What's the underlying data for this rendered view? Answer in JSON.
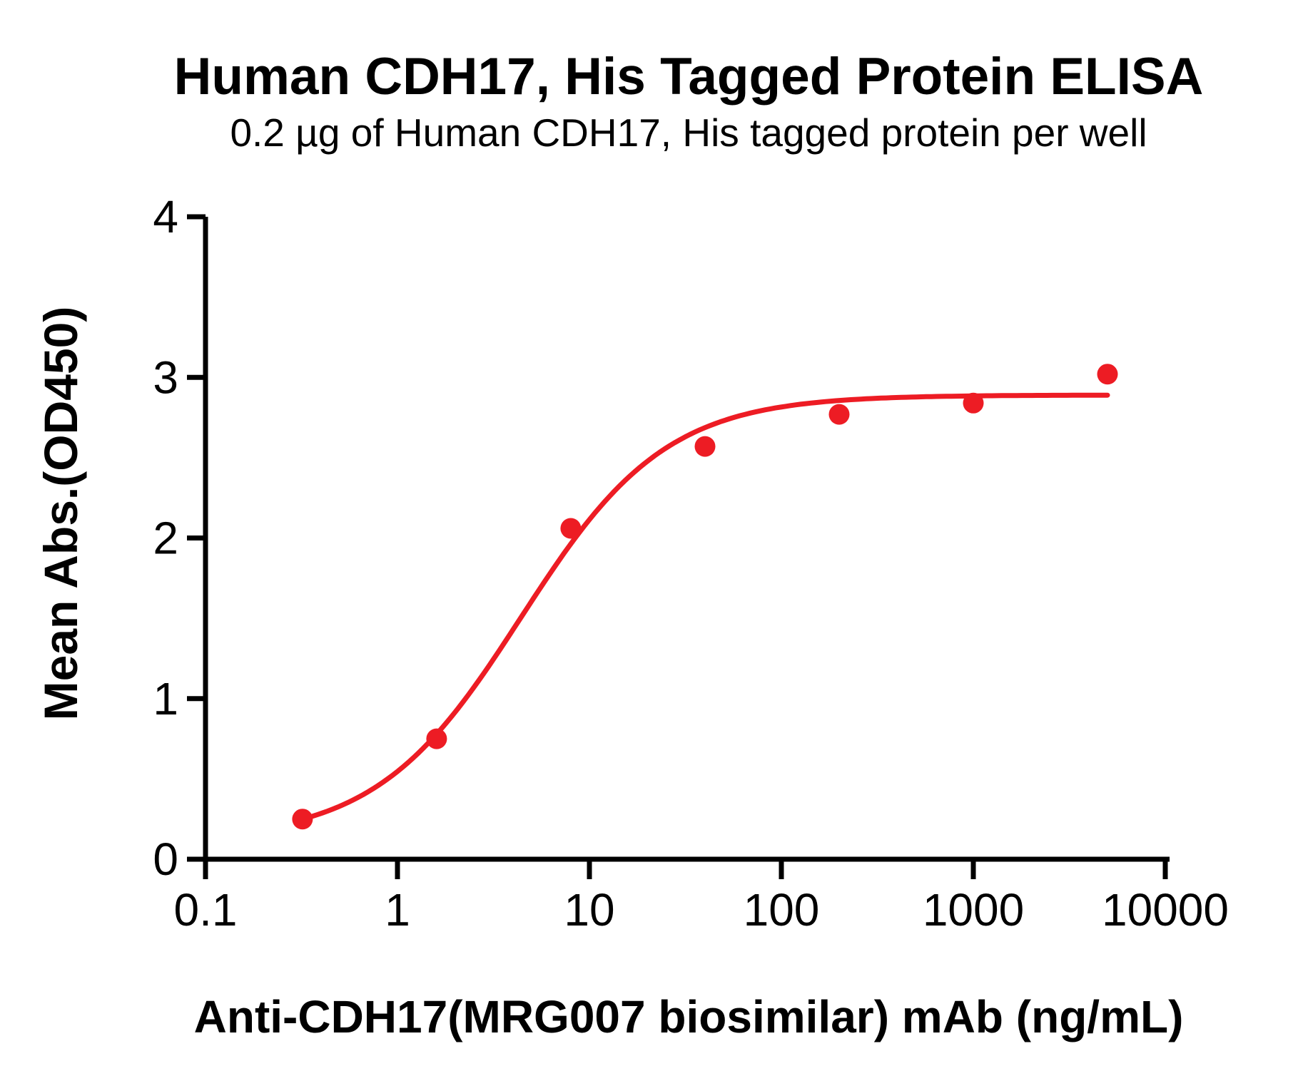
{
  "chart_data": {
    "type": "scatter",
    "title": "Human CDH17, His Tagged Protein ELISA",
    "subtitle": "0.2 µg of Human CDH17, His tagged protein per well",
    "xlabel": "Anti-CDH17(MRG007 biosimilar) mAb (ng/mL)",
    "ylabel": "Mean Abs.(OD450)",
    "x_scale": "log",
    "y_scale": "linear",
    "xlim": [
      0.1,
      10000
    ],
    "ylim": [
      0,
      4
    ],
    "x_tick_values": [
      0.1,
      1,
      10,
      100,
      1000,
      10000
    ],
    "x_tick_labels": [
      "0.1",
      "1",
      "10",
      "100",
      "1000",
      "10000"
    ],
    "y_tick_values": [
      0,
      1,
      2,
      3,
      4
    ],
    "y_tick_labels": [
      "0",
      "1",
      "2",
      "3",
      "4"
    ],
    "grid": false,
    "legend": false,
    "series": [
      {
        "x": [
          0.32,
          1.6,
          8,
          40,
          200,
          1000,
          5000
        ],
        "y": [
          0.25,
          0.75,
          2.06,
          2.57,
          2.77,
          2.84,
          3.02
        ]
      }
    ],
    "fit_curve": {
      "model": "4PL",
      "bottom": 0.12,
      "top": 2.89,
      "ec50": 4.4,
      "hill": 1.15,
      "x_range": [
        0.32,
        5000
      ]
    }
  },
  "colors": {
    "point_red": "#ED1C24",
    "curve_red": "#ED1C24",
    "axis_black": "#000000",
    "background": "#FFFFFF"
  }
}
